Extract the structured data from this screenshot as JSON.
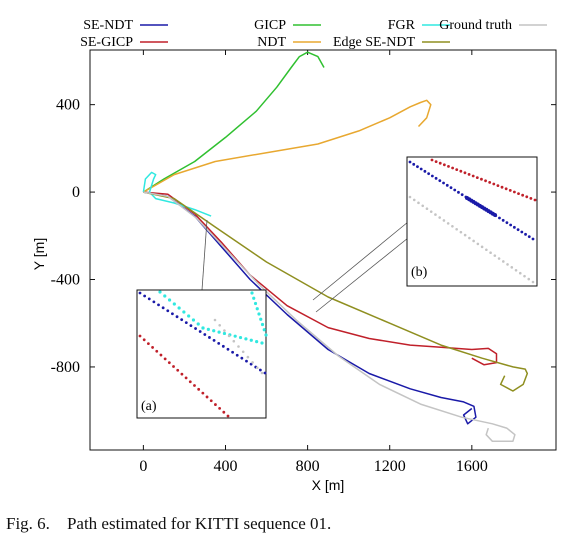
{
  "chart_data": {
    "type": "line",
    "xlabel": "X [m]",
    "ylabel": "Y [m]",
    "xlim": [
      -260,
      2010
    ],
    "ylim": [
      -1180,
      650
    ],
    "xticks": [
      0,
      400,
      800,
      1200,
      1600
    ],
    "yticks": [
      400,
      0,
      -400,
      -800
    ],
    "grid": false,
    "legend_position": "top, above plot",
    "series": [
      {
        "name": "SE-NDT",
        "color": "#1a1aa8",
        "x": [
          0,
          120,
          250,
          380,
          520,
          700,
          900,
          1100,
          1300,
          1450,
          1560,
          1610,
          1620,
          1580,
          1560,
          1600
        ],
        "y": [
          0,
          -20,
          -110,
          -250,
          -400,
          -560,
          -720,
          -830,
          -900,
          -940,
          -960,
          -980,
          -1030,
          -1060,
          -1020,
          -990
        ]
      },
      {
        "name": "SE-GICP",
        "color": "#c0202a",
        "x": [
          0,
          120,
          250,
          380,
          520,
          700,
          900,
          1100,
          1300,
          1450,
          1600,
          1680,
          1720,
          1720,
          1660,
          1600
        ],
        "y": [
          0,
          -10,
          -100,
          -230,
          -380,
          -520,
          -620,
          -670,
          -700,
          -710,
          -720,
          -715,
          -740,
          -780,
          -790,
          -760
        ]
      },
      {
        "name": "GICP",
        "color": "#30c030",
        "x": [
          0,
          100,
          250,
          400,
          550,
          650,
          720,
          760,
          800,
          850,
          880
        ],
        "y": [
          0,
          60,
          140,
          250,
          370,
          480,
          570,
          620,
          640,
          620,
          570
        ]
      },
      {
        "name": "NDT",
        "color": "#e8a830",
        "x": [
          0,
          150,
          350,
          600,
          850,
          1050,
          1200,
          1300,
          1350,
          1380,
          1400,
          1380,
          1340
        ],
        "y": [
          0,
          80,
          140,
          180,
          220,
          280,
          340,
          390,
          410,
          420,
          400,
          340,
          300
        ]
      },
      {
        "name": "FGR",
        "color": "#30e8e0",
        "x": [
          0,
          10,
          40,
          60,
          50,
          30,
          60,
          150,
          250,
          330
        ],
        "y": [
          0,
          60,
          90,
          80,
          60,
          0,
          -30,
          -50,
          -80,
          -110
        ]
      },
      {
        "name": "Edge SE-NDT",
        "color": "#8f8f20",
        "x": [
          0,
          150,
          350,
          600,
          900,
          1200,
          1450,
          1650,
          1800,
          1860,
          1870,
          1850,
          1800,
          1740,
          1760
        ],
        "y": [
          0,
          -30,
          -160,
          -320,
          -480,
          -600,
          -700,
          -760,
          -800,
          -810,
          -830,
          -880,
          -910,
          -880,
          -840
        ]
      },
      {
        "name": "Ground truth",
        "color": "#c4c4c4",
        "x": [
          0,
          120,
          260,
          400,
          560,
          750,
          950,
          1150,
          1350,
          1550,
          1700,
          1770,
          1810,
          1800,
          1700,
          1670,
          1680
        ],
        "y": [
          0,
          -20,
          -120,
          -260,
          -420,
          -590,
          -750,
          -880,
          -970,
          -1030,
          -1060,
          -1080,
          -1110,
          -1140,
          -1140,
          -1110,
          -1080
        ]
      }
    ],
    "insets": [
      {
        "label": "(a)"
      },
      {
        "label": "(b)"
      }
    ]
  },
  "caption": {
    "prefix": "Fig. 6.",
    "text": "Path estimated for KITTI sequence 01."
  }
}
